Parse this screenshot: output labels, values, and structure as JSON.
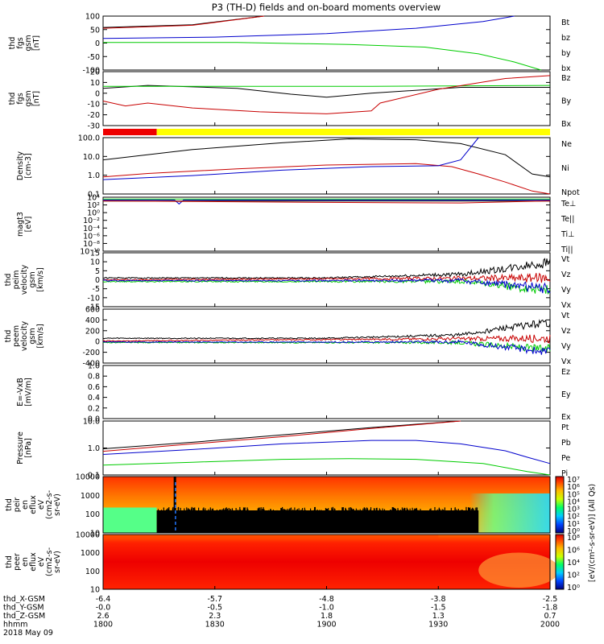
{
  "title": "P3 (TH-D) fields and on-board moments overview",
  "colors": {
    "black": "#000000",
    "red": "#c80000",
    "green": "#00cc00",
    "blue": "#0000cc",
    "bar_red": "#ee0000",
    "bar_yellow": "#ffff00"
  },
  "chart_data": [
    {
      "type": "line",
      "key": "fgs_gsm",
      "ylabel": [
        "thd",
        "fgs",
        "gsm",
        "[nT]"
      ],
      "ylim": [
        -100,
        100
      ],
      "yticks": [
        "100",
        "50",
        "0",
        "-50",
        "-100"
      ],
      "legend": [
        {
          "label": "Bt",
          "color": "black"
        },
        {
          "label": "bz",
          "color": "red"
        },
        {
          "label": "by",
          "color": "green"
        },
        {
          "label": "bx",
          "color": "blue"
        }
      ],
      "series": [
        {
          "name": "Bt",
          "color": "black",
          "x": [
            0,
            0.2,
            0.36
          ],
          "y": [
            58,
            68,
            100
          ]
        },
        {
          "name": "bz",
          "color": "red",
          "x": [
            0,
            0.2,
            0.36
          ],
          "y": [
            55,
            66,
            100
          ]
        },
        {
          "name": "by",
          "color": "green",
          "x": [
            0,
            0.3,
            0.55,
            0.72,
            0.84,
            0.92,
            0.98
          ],
          "y": [
            2,
            2,
            -5,
            -15,
            -40,
            -70,
            -100
          ]
        },
        {
          "name": "bx",
          "color": "blue",
          "x": [
            0,
            0.25,
            0.5,
            0.7,
            0.85,
            0.92
          ],
          "y": [
            17,
            22,
            35,
            55,
            80,
            100
          ]
        }
      ]
    },
    {
      "type": "line",
      "key": "fgs_gsm_zoom",
      "ylabel": [
        "thd",
        "fgs",
        "gsm",
        "[nT]"
      ],
      "ylim": [
        -35,
        20
      ],
      "yticks": [
        "20",
        "10",
        "0",
        "-10",
        "-20",
        "-30"
      ],
      "legend": [
        {
          "label": "Bz",
          "color": "red"
        },
        {
          "label": "By",
          "color": "green"
        },
        {
          "label": "Bx",
          "color": "black"
        }
      ],
      "series": [
        {
          "name": "Bx",
          "color": "black",
          "x": [
            0,
            0.1,
            0.3,
            0.42,
            0.5,
            0.6,
            0.8,
            1
          ],
          "y": [
            3,
            6,
            3,
            -3,
            -6,
            -2,
            4,
            4
          ]
        },
        {
          "name": "By",
          "color": "green",
          "x": [
            0,
            0.3,
            0.6,
            1
          ],
          "y": [
            5,
            5,
            5,
            6
          ]
        },
        {
          "name": "Bz",
          "color": "red",
          "x": [
            0,
            0.05,
            0.1,
            0.2,
            0.35,
            0.5,
            0.6,
            0.62,
            0.75,
            0.9,
            1
          ],
          "y": [
            -10,
            -15,
            -12,
            -17,
            -21,
            -23,
            -20,
            -12,
            2,
            13,
            16
          ]
        }
      ]
    },
    {
      "type": "bar",
      "key": "mode_bar",
      "segments": [
        {
          "start": 0,
          "end": 0.12,
          "color": "bar_red"
        },
        {
          "start": 0.12,
          "end": 1,
          "color": "bar_yellow"
        }
      ]
    },
    {
      "type": "line",
      "key": "density",
      "scale": "log",
      "ylabel": [
        "Density",
        "[cm-3]"
      ],
      "ylim": [
        0.1,
        200
      ],
      "yticks": [
        "100.0",
        "10.0",
        "1.0",
        "0.1"
      ],
      "legend": [
        {
          "label": "Ne",
          "color": "red"
        },
        {
          "label": "Ni",
          "color": "black"
        },
        {
          "label": "Npot",
          "color": "blue"
        }
      ],
      "series": [
        {
          "name": "Ni",
          "color": "black",
          "x": [
            0,
            0.2,
            0.4,
            0.55,
            0.7,
            0.8,
            0.9,
            0.96,
            1
          ],
          "y": [
            10,
            40,
            100,
            170,
            150,
            90,
            20,
            1.5,
            1.0
          ]
        },
        {
          "name": "Ne",
          "color": "red",
          "x": [
            0,
            0.1,
            0.3,
            0.5,
            0.7,
            0.78,
            0.84,
            0.9,
            0.96,
            1
          ],
          "y": [
            1.0,
            1.6,
            3,
            5,
            6,
            4,
            1.5,
            0.5,
            0.15,
            0.1
          ]
        },
        {
          "name": "Npot",
          "color": "blue",
          "x": [
            0,
            0.2,
            0.4,
            0.6,
            0.75,
            0.8,
            0.84
          ],
          "y": [
            0.7,
            1.2,
            2.5,
            4,
            4.5,
            10,
            200
          ]
        }
      ]
    },
    {
      "type": "line",
      "key": "temperature",
      "scale": "log",
      "ylabel": [
        "magt3",
        "[eV]"
      ],
      "ylim": [
        1e-12,
        10000.0
      ],
      "yticks": [
        "10⁴",
        "10²",
        "10⁰",
        "10⁻²",
        "10⁻⁴",
        "10⁻⁶",
        "10⁻⁸",
        "10⁻¹⁰"
      ],
      "legend": [
        {
          "label": "Te⊥",
          "color": "red"
        },
        {
          "label": "Te||",
          "color": "black"
        },
        {
          "label": "Ti⊥",
          "color": "blue"
        },
        {
          "label": "Ti||",
          "color": "green"
        }
      ],
      "series": [
        {
          "name": "Ti||",
          "color": "green",
          "x": [
            0,
            1
          ],
          "y": [
            3000,
            3000
          ]
        },
        {
          "name": "Ti⊥",
          "color": "blue",
          "x": [
            0,
            0.16,
            0.17,
            0.18,
            1
          ],
          "y": [
            1500,
            1500,
            100,
            1500,
            1500
          ]
        },
        {
          "name": "Te||",
          "color": "black",
          "x": [
            0,
            1
          ],
          "y": [
            700,
            700
          ]
        },
        {
          "name": "Te⊥",
          "color": "red",
          "x": [
            0,
            0.5,
            0.8,
            1
          ],
          "y": [
            800,
            300,
            200,
            800
          ]
        }
      ]
    },
    {
      "type": "line",
      "key": "peim_velocity",
      "ylabel": [
        "thd",
        "peim",
        "velocity",
        "gsm",
        "[km/s]"
      ],
      "ylim": [
        -15,
        15
      ],
      "yticks": [
        "15",
        "10",
        "5",
        "0",
        "-5",
        "-10",
        "-15"
      ],
      "legend": [
        {
          "label": "Vt",
          "color": "black"
        },
        {
          "label": "Vz",
          "color": "red"
        },
        {
          "label": "Vy",
          "color": "green"
        },
        {
          "label": "Vx",
          "color": "blue"
        }
      ],
      "series": [
        {
          "name": "Vt",
          "color": "black",
          "x": [
            0,
            0.5,
            0.8,
            0.9,
            1
          ],
          "y": [
            1,
            1,
            3,
            6,
            10
          ]
        },
        {
          "name": "Vz",
          "color": "red",
          "x": [
            0,
            1
          ],
          "y": [
            0,
            1
          ]
        },
        {
          "name": "Vy",
          "color": "green",
          "x": [
            0,
            0.8,
            1
          ],
          "y": [
            -1,
            -1,
            -6
          ]
        },
        {
          "name": "Vx",
          "color": "blue",
          "x": [
            0,
            0.8,
            1
          ],
          "y": [
            -0.5,
            -0.5,
            -5
          ]
        }
      ]
    },
    {
      "type": "line",
      "key": "peem_velocity",
      "ylabel": [
        "thd",
        "peem",
        "velocity",
        "gsm",
        "[km/s]"
      ],
      "ylim": [
        -400,
        600
      ],
      "yticks": [
        "600",
        "400",
        "200",
        "0",
        "-200",
        "-400"
      ],
      "legend": [
        {
          "label": "Vt",
          "color": "black"
        },
        {
          "label": "Vz",
          "color": "red"
        },
        {
          "label": "Vy",
          "color": "green"
        },
        {
          "label": "Vx",
          "color": "blue"
        }
      ],
      "series": [
        {
          "name": "Vt",
          "color": "black",
          "x": [
            0,
            0.5,
            0.8,
            0.9,
            1
          ],
          "y": [
            60,
            60,
            120,
            250,
            350
          ]
        },
        {
          "name": "Vz",
          "color": "red",
          "x": [
            0,
            1
          ],
          "y": [
            10,
            60
          ]
        },
        {
          "name": "Vy",
          "color": "green",
          "x": [
            0,
            0.8,
            1
          ],
          "y": [
            -20,
            -20,
            -150
          ]
        },
        {
          "name": "Vx",
          "color": "blue",
          "x": [
            0,
            0.8,
            1
          ],
          "y": [
            -10,
            -10,
            -200
          ]
        }
      ]
    },
    {
      "type": "line",
      "key": "efield",
      "ylabel": [
        "E=-VxB",
        "[mV/m]"
      ],
      "ylim": [
        0,
        1
      ],
      "yticks": [
        "1.0",
        "0.8",
        "0.6",
        "0.4",
        "0.2",
        "0.0"
      ],
      "legend": [
        {
          "label": "Ez",
          "color": "red"
        },
        {
          "label": "Ey",
          "color": "green"
        },
        {
          "label": "Ex",
          "color": "blue"
        }
      ],
      "series": []
    },
    {
      "type": "line",
      "key": "pressure",
      "scale": "log",
      "ylabel": [
        "Pressure",
        "[nPa]"
      ],
      "ylim": [
        0.05,
        100
      ],
      "yticks": [
        "10.0",
        "1.0",
        "0.1"
      ],
      "legend": [
        {
          "label": "Pt",
          "color": "black"
        },
        {
          "label": "Pb",
          "color": "red"
        },
        {
          "label": "Pe",
          "color": "green"
        },
        {
          "label": "Pi",
          "color": "blue"
        }
      ],
      "series": [
        {
          "name": "Pt",
          "color": "black",
          "x": [
            0,
            0.2,
            0.4,
            0.6,
            0.8
          ],
          "y": [
            2,
            5,
            14,
            40,
            100
          ]
        },
        {
          "name": "Pb",
          "color": "red",
          "x": [
            0,
            0.2,
            0.4,
            0.6,
            0.8
          ],
          "y": [
            1.4,
            4,
            11,
            35,
            100
          ]
        },
        {
          "name": "Pi",
          "color": "blue",
          "x": [
            0,
            0.2,
            0.4,
            0.6,
            0.7,
            0.8,
            0.9,
            0.95,
            1
          ],
          "y": [
            0.9,
            1.8,
            4,
            6.5,
            6.5,
            4,
            1.5,
            0.6,
            0.25
          ]
        },
        {
          "name": "Pe",
          "color": "green",
          "x": [
            0,
            0.2,
            0.4,
            0.55,
            0.7,
            0.85,
            0.95,
            1
          ],
          "y": [
            0.2,
            0.3,
            0.45,
            0.5,
            0.45,
            0.25,
            0.08,
            0.05
          ]
        }
      ]
    },
    {
      "type": "heatmap",
      "key": "peir_spec",
      "ylabel": [
        "thd",
        "peir",
        "en",
        "eflux",
        "eV",
        "(cm2-s-",
        "sr-eV)"
      ],
      "yticks": [
        "10000",
        "1000",
        "100",
        "10"
      ]
    },
    {
      "type": "heatmap",
      "key": "peer_spec",
      "ylabel": [
        "thd",
        "peer",
        "en",
        "eflux",
        "eV",
        "(cm2-s-",
        "sr-eV)"
      ],
      "yticks": [
        "10000",
        "1000",
        "100",
        "10"
      ]
    }
  ],
  "colorbar": {
    "top_ticks": [
      "10⁷",
      "10⁶",
      "10⁵",
      "10⁴",
      "10³",
      "10²",
      "10¹",
      "10⁰"
    ],
    "bottom_ticks": [
      "10⁸",
      "10⁶",
      "10⁴",
      "10²",
      "10⁰"
    ],
    "label": "[eV/(cm²-s-sr-eV)] (All Qs)"
  },
  "x_axis": {
    "rows": [
      {
        "label": "thd_X-GSM",
        "values": [
          "-6.4",
          "-5.7",
          "-4.8",
          "-3.8",
          "-2.5"
        ]
      },
      {
        "label": "thd_Y-GSM",
        "values": [
          "-0.0",
          "-0.5",
          "-1.0",
          "-1.5",
          "-1.8"
        ]
      },
      {
        "label": "thd_Z-GSM",
        "values": [
          "2.6",
          "2.3",
          "1.8",
          "1.3",
          "0.7"
        ]
      },
      {
        "label": "hhmm",
        "values": [
          "1800",
          "1830",
          "1900",
          "1930",
          "2000"
        ]
      }
    ],
    "date": "2018 May 09"
  }
}
